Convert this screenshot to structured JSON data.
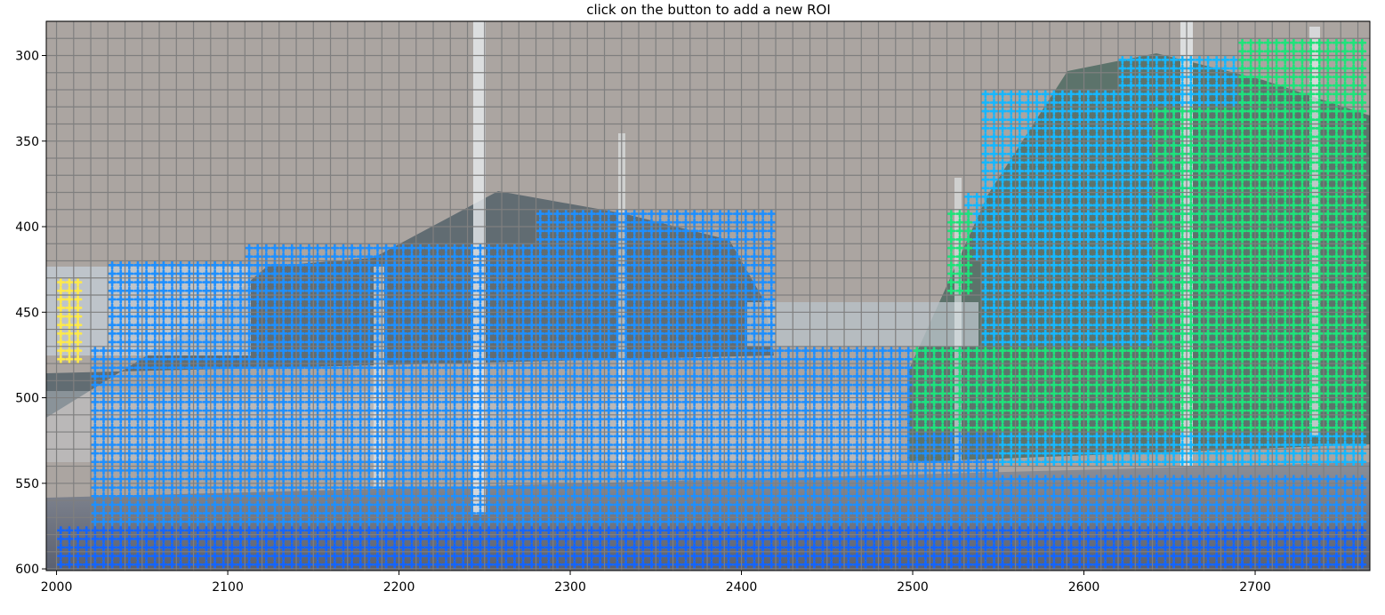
{
  "title": "click on the button to add a new ROI",
  "axes": {
    "xlim": [
      1994,
      2767
    ],
    "ylim": [
      601,
      280
    ],
    "x_ticks": [
      2000,
      2100,
      2200,
      2300,
      2400,
      2500,
      2600,
      2700
    ],
    "y_ticks": [
      300,
      350,
      400,
      450,
      500,
      550,
      600
    ],
    "grid": true,
    "grid_step": 10
  },
  "colors": {
    "sky": "#aba5a1",
    "grid": "#7f7f7f",
    "marker_blue": "#1e8fff",
    "marker_cyan": "#16b7ff",
    "marker_green": "#1ee37a",
    "marker_deep_blue": "#1464ff",
    "marker_yellow": "#ffe94a"
  },
  "regions": {
    "blue": [
      [
        2020,
        600,
        2550,
        470
      ],
      [
        2030,
        470,
        2420,
        420
      ],
      [
        2110,
        430,
        2300,
        410
      ],
      [
        2280,
        420,
        2420,
        390
      ],
      [
        2540,
        600,
        2767,
        545
      ]
    ],
    "cyan": [
      [
        2550,
        540,
        2767,
        510
      ],
      [
        2540,
        470,
        2680,
        320
      ],
      [
        2620,
        330,
        2700,
        300
      ],
      [
        2530,
        420,
        2620,
        380
      ]
    ],
    "green": [
      [
        2500,
        520,
        2640,
        470
      ],
      [
        2640,
        520,
        2767,
        330
      ],
      [
        2690,
        350,
        2767,
        290
      ],
      [
        2520,
        440,
        2535,
        390
      ]
    ],
    "deep_blue": [
      [
        2000,
        600,
        2767,
        575
      ]
    ],
    "yellow": [
      [
        1998,
        480,
        2015,
        430
      ]
    ]
  }
}
